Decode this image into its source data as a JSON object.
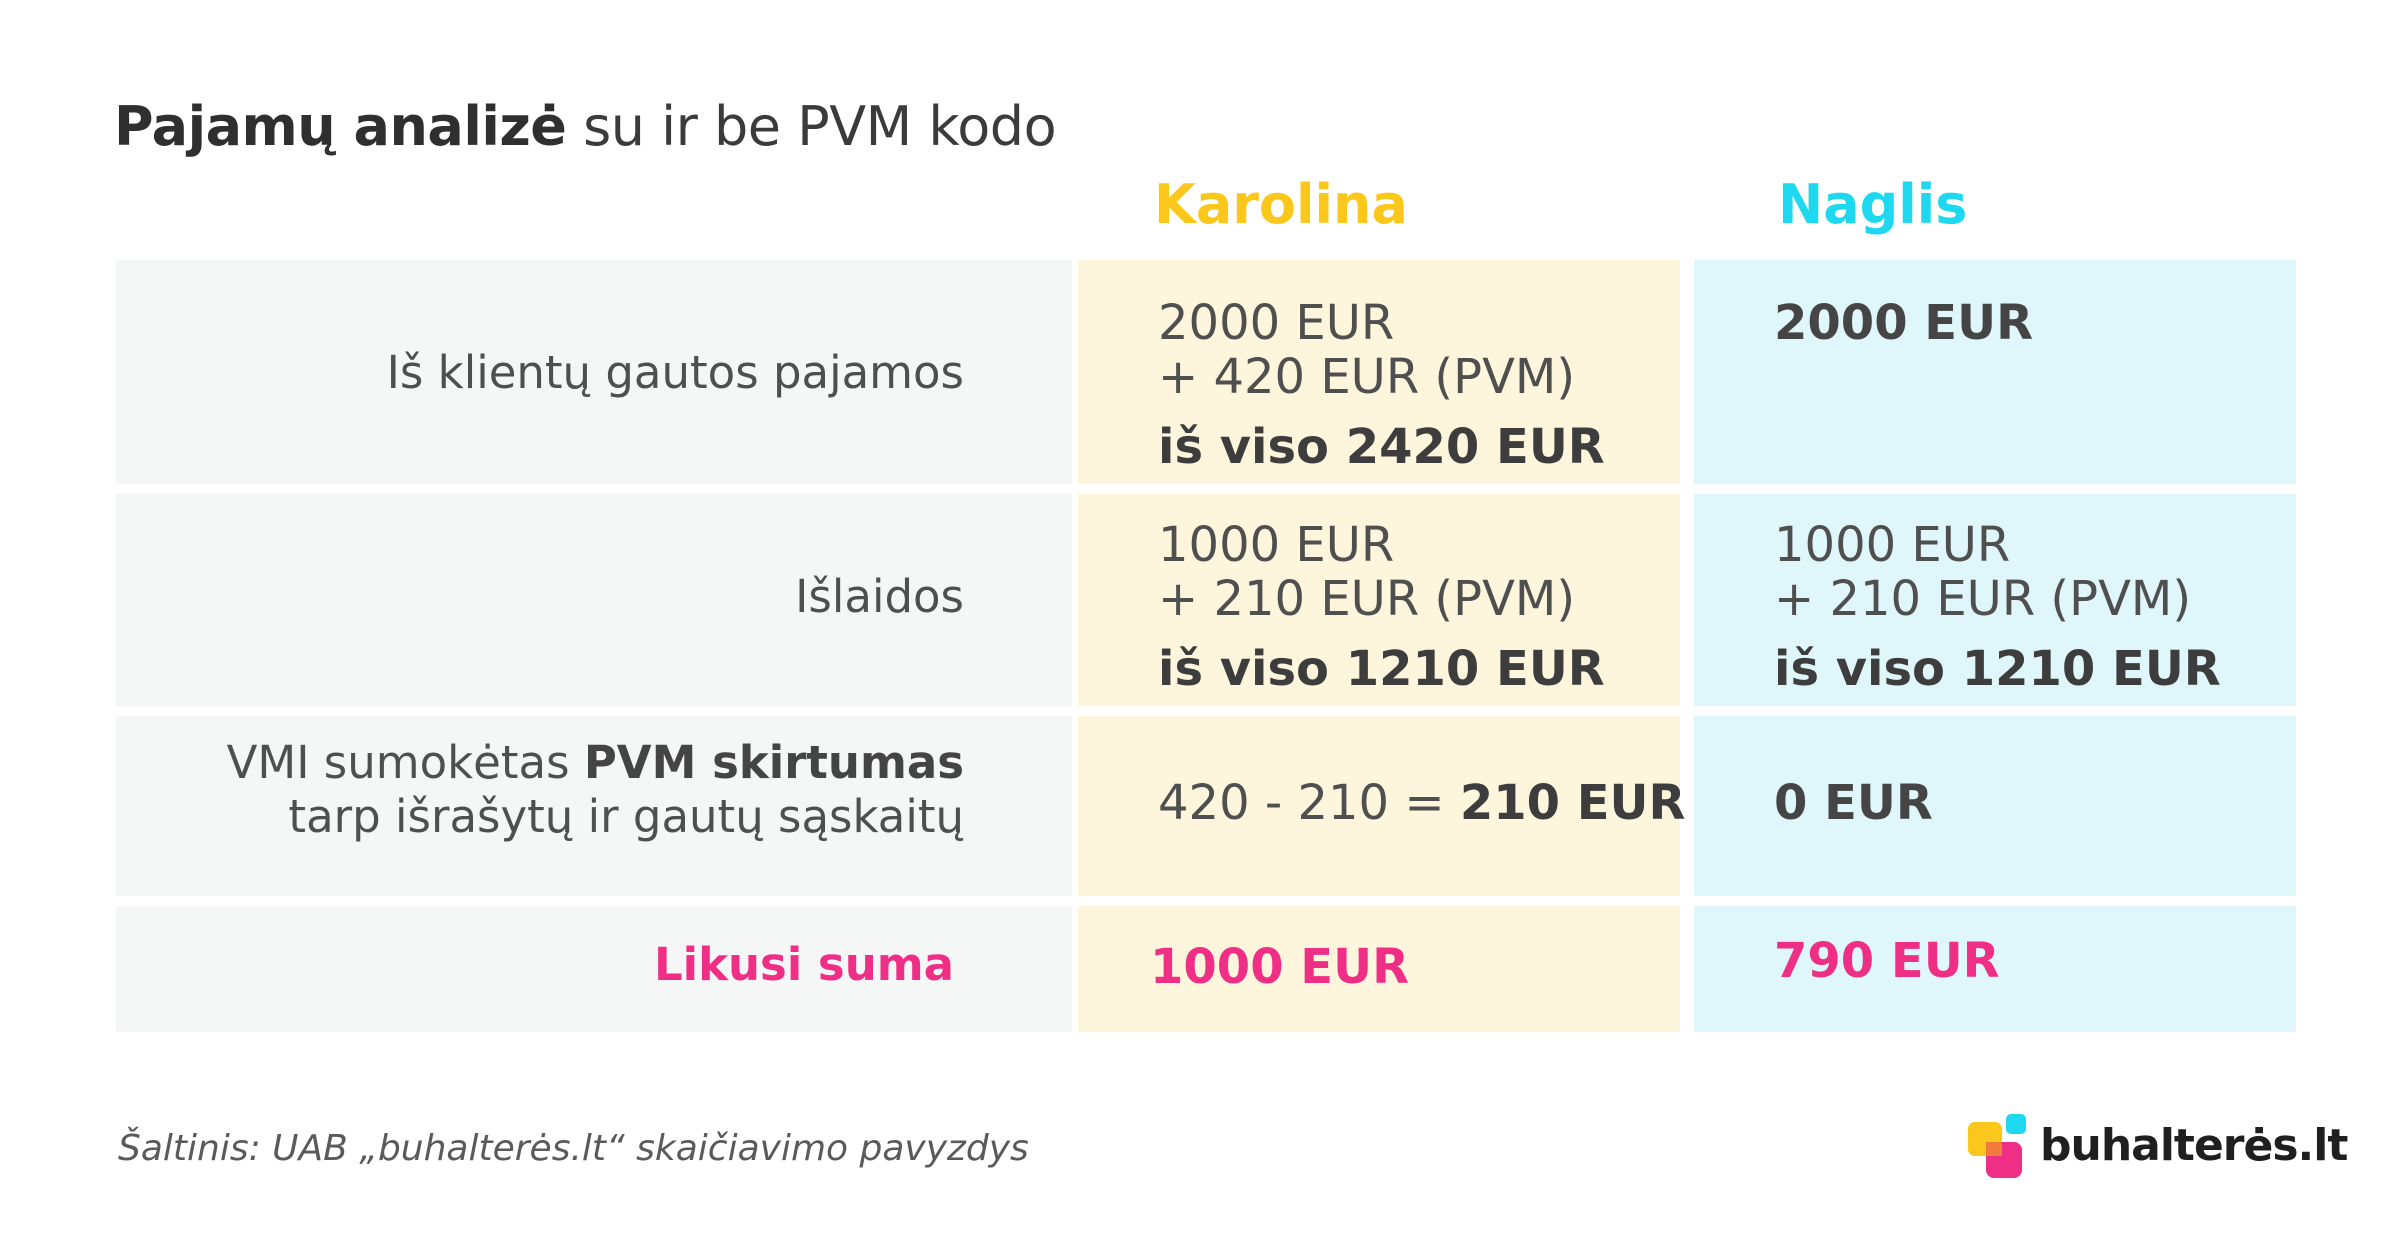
{
  "title": {
    "bold": "Pajamų analizė",
    "rest": " su ir be PVM kodo"
  },
  "columns": {
    "karolina": "Karolina",
    "naglis": "Naglis"
  },
  "colors": {
    "karolina_accent": "#fbc71b",
    "naglis_accent": "#1ed8ef",
    "highlight_pink": "#ef2f86",
    "karolina_bg": "#fdf6dd",
    "naglis_bg": "#dff6fb",
    "label_bg": "#f5f7f6"
  },
  "rows": {
    "income": {
      "label": "Iš klientų gautos pajamos",
      "karolina": {
        "line1": "2000 EUR",
        "line2": "+ 420 EUR (PVM)",
        "total_prefix": "iš viso ",
        "total_value": "2420 EUR"
      },
      "naglis": {
        "value": "2000 EUR"
      }
    },
    "expenses": {
      "label": "Išlaidos",
      "karolina": {
        "line1": "1000 EUR",
        "line2": "+ 210 EUR (PVM)",
        "total_prefix": "iš viso ",
        "total_value": "1210 EUR"
      },
      "naglis": {
        "line1": "1000 EUR",
        "line2": "+ 210 EUR (PVM)",
        "total_prefix": "iš viso ",
        "total_value": "1210 EUR"
      }
    },
    "vat": {
      "label_line1_plain": "VMI sumokėtas ",
      "label_line1_bold": "PVM skirtumas",
      "label_line2": "tarp išrašytų ir gautų sąskaitų",
      "karolina": {
        "formula": "420 - 210 = ",
        "result": "210 EUR"
      },
      "naglis": {
        "value": "0 EUR"
      }
    },
    "remaining": {
      "label": "Likusi suma",
      "karolina": "1000 EUR",
      "naglis": "790 EUR"
    }
  },
  "source": "Šaltinis: UAB „buhalterės.lt“ skaičiavimo pavyzdys",
  "brand": {
    "name": "buhalterės.lt",
    "icon": "buhalteres-logo-icon"
  }
}
